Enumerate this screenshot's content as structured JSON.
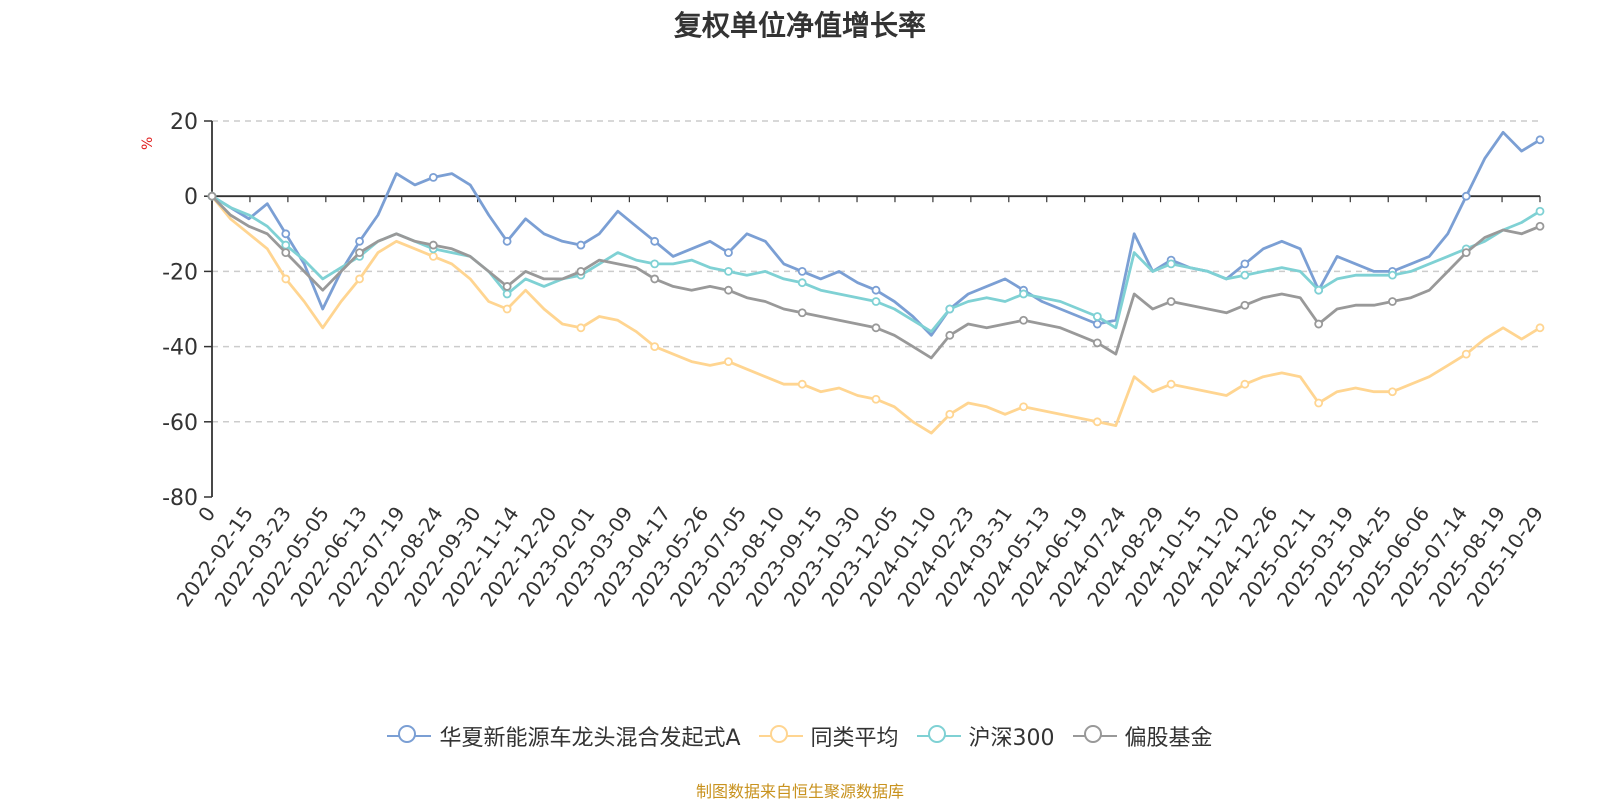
{
  "title": "复权单位净值增长率",
  "source_note": "制图数据来自恒生聚源数据库",
  "chart_data": {
    "type": "line",
    "title": "复权单位净值增长率",
    "ylabel": "%",
    "ylim": [
      -80,
      20
    ],
    "y_ticks": [
      20,
      0,
      -20,
      -40,
      -60,
      -80
    ],
    "grid": true,
    "legend_position": "bottom-center",
    "x_tick_labels": [
      "0",
      "2022-02-15",
      "2022-03-23",
      "2022-05-05",
      "2022-06-13",
      "2022-07-19",
      "2022-08-24",
      "2022-09-30",
      "2022-11-14",
      "2022-12-20",
      "2023-02-01",
      "2023-03-09",
      "2023-04-17",
      "2023-05-26",
      "2023-07-05",
      "2023-08-10",
      "2023-09-15",
      "2023-10-30",
      "2023-12-05",
      "2024-01-10",
      "2024-02-23",
      "2024-03-31",
      "2024-05-13",
      "2024-06-19",
      "2024-07-24",
      "2024-08-29",
      "2024-10-15",
      "2024-11-20",
      "2024-12-26",
      "2025-02-11",
      "2025-03-19",
      "2025-04-25",
      "2025-06-06",
      "2025-07-14",
      "2025-08-19",
      "2025-10-29"
    ],
    "series": [
      {
        "name": "华夏新能源车龙头混合发起式A",
        "color": "#7b9fd4",
        "values": [
          0,
          -3,
          -6,
          -2,
          -10,
          -18,
          -30,
          -20,
          -12,
          -5,
          6,
          3,
          5,
          6,
          3,
          -5,
          -12,
          -6,
          -10,
          -12,
          -13,
          -10,
          -4,
          -8,
          -12,
          -16,
          -14,
          -12,
          -15,
          -10,
          -12,
          -18,
          -20,
          -22,
          -20,
          -23,
          -25,
          -28,
          -32,
          -37,
          -30,
          -26,
          -24,
          -22,
          -25,
          -28,
          -30,
          -32,
          -34,
          -33,
          -10,
          -20,
          -17,
          -19,
          -20,
          -22,
          -18,
          -14,
          -12,
          -14,
          -25,
          -16,
          -18,
          -20,
          -20,
          -18,
          -16,
          -10,
          0,
          10,
          17,
          12,
          15
        ]
      },
      {
        "name": "同类平均",
        "color": "#ffd591",
        "values": [
          0,
          -6,
          -10,
          -14,
          -22,
          -28,
          -35,
          -28,
          -22,
          -15,
          -12,
          -14,
          -16,
          -18,
          -22,
          -28,
          -30,
          -25,
          -30,
          -34,
          -35,
          -32,
          -33,
          -36,
          -40,
          -42,
          -44,
          -45,
          -44,
          -46,
          -48,
          -50,
          -50,
          -52,
          -51,
          -53,
          -54,
          -56,
          -60,
          -63,
          -58,
          -55,
          -56,
          -58,
          -56,
          -57,
          -58,
          -59,
          -60,
          -61,
          -48,
          -52,
          -50,
          -51,
          -52,
          -53,
          -50,
          -48,
          -47,
          -48,
          -55,
          -52,
          -51,
          -52,
          -52,
          -50,
          -48,
          -45,
          -42,
          -38,
          -35,
          -38,
          -35
        ]
      },
      {
        "name": "沪深300",
        "color": "#7fd1d4",
        "values": [
          0,
          -3,
          -5,
          -8,
          -13,
          -17,
          -22,
          -19,
          -16,
          -12,
          -10,
          -12,
          -14,
          -15,
          -16,
          -20,
          -26,
          -22,
          -24,
          -22,
          -21,
          -18,
          -15,
          -17,
          -18,
          -18,
          -17,
          -19,
          -20,
          -21,
          -20,
          -22,
          -23,
          -25,
          -26,
          -27,
          -28,
          -30,
          -33,
          -36,
          -30,
          -28,
          -27,
          -28,
          -26,
          -27,
          -28,
          -30,
          -32,
          -35,
          -15,
          -20,
          -18,
          -19,
          -20,
          -22,
          -21,
          -20,
          -19,
          -20,
          -25,
          -22,
          -21,
          -21,
          -21,
          -20,
          -18,
          -16,
          -14,
          -12,
          -9,
          -7,
          -4
        ]
      },
      {
        "name": "偏股基金",
        "color": "#999999",
        "values": [
          0,
          -5,
          -8,
          -10,
          -15,
          -20,
          -25,
          -20,
          -15,
          -12,
          -10,
          -12,
          -13,
          -14,
          -16,
          -20,
          -24,
          -20,
          -22,
          -22,
          -20,
          -17,
          -18,
          -19,
          -22,
          -24,
          -25,
          -24,
          -25,
          -27,
          -28,
          -30,
          -31,
          -32,
          -33,
          -34,
          -35,
          -37,
          -40,
          -43,
          -37,
          -34,
          -35,
          -34,
          -33,
          -34,
          -35,
          -37,
          -39,
          -42,
          -26,
          -30,
          -28,
          -29,
          -30,
          -31,
          -29,
          -27,
          -26,
          -27,
          -34,
          -30,
          -29,
          -29,
          -28,
          -27,
          -25,
          -20,
          -15,
          -11,
          -9,
          -10,
          -8
        ]
      }
    ]
  }
}
